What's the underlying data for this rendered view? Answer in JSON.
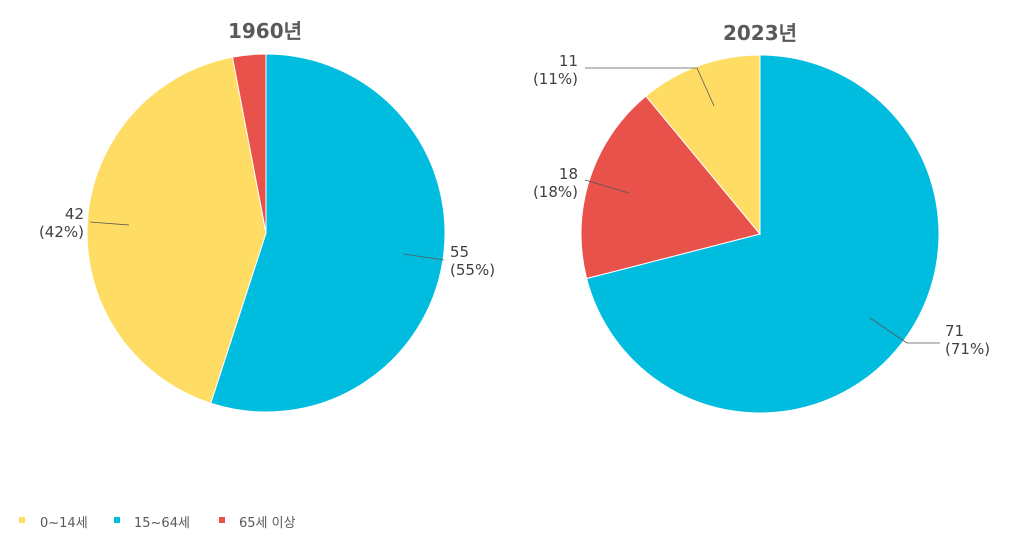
{
  "chart_data": [
    {
      "type": "pie",
      "title": "1960년",
      "series": [
        {
          "name": "0~14세",
          "value": 42,
          "label": "42",
          "pct_label": "(42%)"
        },
        {
          "name": "15~64세",
          "value": 55,
          "label": "55",
          "pct_label": "(55%)"
        },
        {
          "name": "65세 이상",
          "value": 3,
          "label": "",
          "pct_label": ""
        }
      ]
    },
    {
      "type": "pie",
      "title": "2023년",
      "series": [
        {
          "name": "0~14세",
          "value": 11,
          "label": "11",
          "pct_label": "(11%)"
        },
        {
          "name": "15~64세",
          "value": 71,
          "label": "71",
          "pct_label": "(71%)"
        },
        {
          "name": "65세 이상",
          "value": 18,
          "label": "18",
          "pct_label": "(18%)"
        }
      ]
    }
  ],
  "legend": {
    "placement": "bottom-left",
    "items": [
      {
        "label": "0~14세",
        "color": "#FFDC64"
      },
      {
        "label": "15~64세",
        "color": "#00BCDE"
      },
      {
        "label": "65세 이상",
        "color": "#E9524A"
      }
    ]
  },
  "colors": {
    "0~14세": "#FFDC64",
    "15~64세": "#00BCDE",
    "65세 이상": "#E9524A"
  }
}
